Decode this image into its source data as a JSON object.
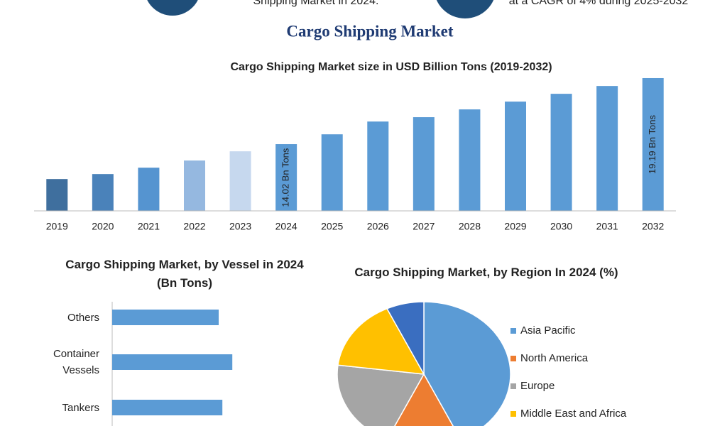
{
  "header": {
    "left_text": "Shipping Market in 2024.",
    "right_text": "at a CAGR of 4% during 2025-2032",
    "title": "Cargo Shipping Market"
  },
  "chart_data": [
    {
      "type": "bar",
      "title": "Cargo Shipping Market size in USD Billion Tons (2019-2032)",
      "categories": [
        "2019",
        "2020",
        "2021",
        "2022",
        "2023",
        "2024",
        "2025",
        "2026",
        "2027",
        "2028",
        "2029",
        "2030",
        "2031",
        "2032"
      ],
      "values": [
        11.29,
        11.68,
        12.18,
        12.74,
        13.46,
        14.02,
        14.79,
        15.79,
        16.13,
        16.74,
        17.35,
        17.96,
        18.57,
        19.19
      ],
      "value_labels": [
        null,
        null,
        null,
        null,
        null,
        "14.02 Bn Tons",
        null,
        null,
        null,
        null,
        null,
        null,
        null,
        "19.19 Bn Tons"
      ],
      "colors": [
        "#3f6f9e",
        "#4a82ba",
        "#5594d0",
        "#95b8e0",
        "#c6d8ee",
        "#5b9bd5",
        "#5b9bd5",
        "#5b9bd5",
        "#5b9bd5",
        "#5b9bd5",
        "#5b9bd5",
        "#5b9bd5",
        "#5b9bd5",
        "#5b9bd5"
      ],
      "ylim": [
        8.8,
        19.6
      ]
    },
    {
      "type": "barh",
      "title": "Cargo Shipping Market, by Vessel in 2024 (Bn Tons)",
      "categories": [
        "Others",
        "Container Vessels",
        "Tankers"
      ],
      "values": [
        3.75,
        4.23,
        3.88
      ],
      "color": "#5b9bd5",
      "xlim": [
        0,
        5
      ]
    },
    {
      "type": "pie",
      "title": "Cargo Shipping Market, by Region In 2024 (%)",
      "categories": [
        "Asia Pacific",
        "North America",
        "Europe",
        "Middle East and Africa",
        null
      ],
      "values": [
        43,
        14,
        20,
        16,
        7
      ],
      "colors": [
        "#5b9bd5",
        "#ed7d31",
        "#a5a5a5",
        "#ffc000",
        "#3a6ec0"
      ]
    }
  ]
}
